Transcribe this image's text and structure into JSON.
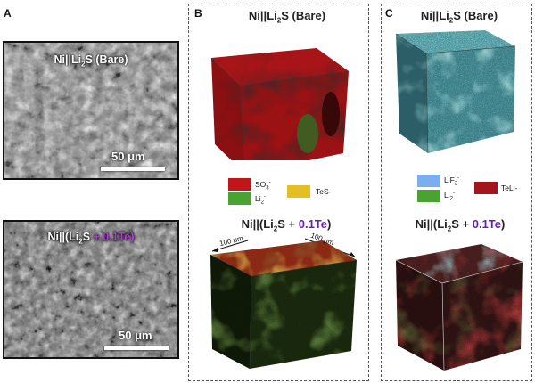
{
  "panelA": {
    "letter": "A",
    "top": {
      "title": "Ni||Li",
      "title_sub": "2",
      "title_after": "S (Bare)",
      "scale": "50 μm"
    },
    "bottom": {
      "title": "Ni||(Li",
      "title_sub": "2",
      "title_after": "S ",
      "title_accent": "+ 0.1Te)",
      "scale": "50 μm"
    }
  },
  "panelB": {
    "letter": "B",
    "top_heading": {
      "pre": "Ni||Li",
      "sub": "2",
      "post": "S (Bare)"
    },
    "legend": [
      {
        "label": "SO",
        "sub": "3",
        "sup": "-",
        "color": "#c0161a"
      },
      {
        "label": "Li",
        "sub": "2",
        "sup": "-",
        "color": "#4aa233"
      },
      {
        "label": "TeS-",
        "sub": "",
        "sup": "",
        "color": "#e2c023"
      }
    ],
    "bottom_heading": {
      "pre": "Ni||(Li",
      "sub": "2",
      "post": "S + ",
      "accent": "0.1Te",
      "close": ")"
    },
    "dim_left": "100 μm",
    "dim_right": "100 μm"
  },
  "panelC": {
    "letter": "C",
    "top_heading": {
      "pre": "Ni||Li",
      "sub": "2",
      "post": "S (Bare)"
    },
    "legend": [
      {
        "label": "LiF",
        "sub": "2",
        "sup": "-",
        "color": "#7aaef0"
      },
      {
        "label": "Li",
        "sub": "2",
        "sup": "-",
        "color": "#4aa233"
      },
      {
        "label": "TeLi-",
        "sub": "",
        "sup": "",
        "color": "#a0161c"
      }
    ],
    "bottom_heading": {
      "pre": "Ni||(Li",
      "sub": "2",
      "post": "S + ",
      "accent": "0.1Te",
      "close": ")"
    }
  }
}
